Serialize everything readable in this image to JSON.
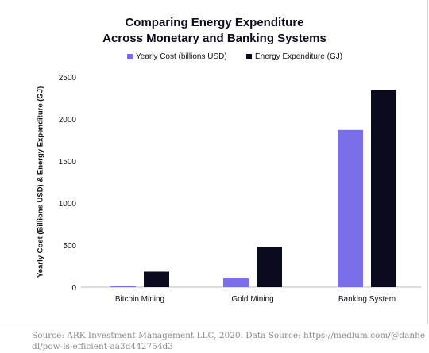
{
  "chart_data": {
    "type": "bar",
    "title_lines": [
      "Comparing Energy Expenditure",
      "Across Monetary and Banking Systems"
    ],
    "ylabel": "Yearly Cost (Billions USD) & Energy Expenditure (GJ)",
    "xlabel": "",
    "categories": [
      "Bitcoin Mining",
      "Gold Mining",
      "Banking System"
    ],
    "series": [
      {
        "name": "Yearly Cost (billions USD)",
        "color": "#7b6fe9",
        "values": [
          15,
          105,
          1870
        ]
      },
      {
        "name": "Energy Expenditure (GJ)",
        "color": "#0b0b1e",
        "values": [
          184,
          475,
          2340
        ]
      }
    ],
    "ylim": [
      0,
      2500
    ],
    "yticks": [
      0,
      500,
      1000,
      1500,
      2000,
      2500
    ],
    "grid": false,
    "legend_position": "top-center"
  },
  "source_text": "Source: ARK Investment Management LLC, 2020. Data Source: https://medium.com/@danhedl/pow-is-efficient-aa3d442754d3"
}
